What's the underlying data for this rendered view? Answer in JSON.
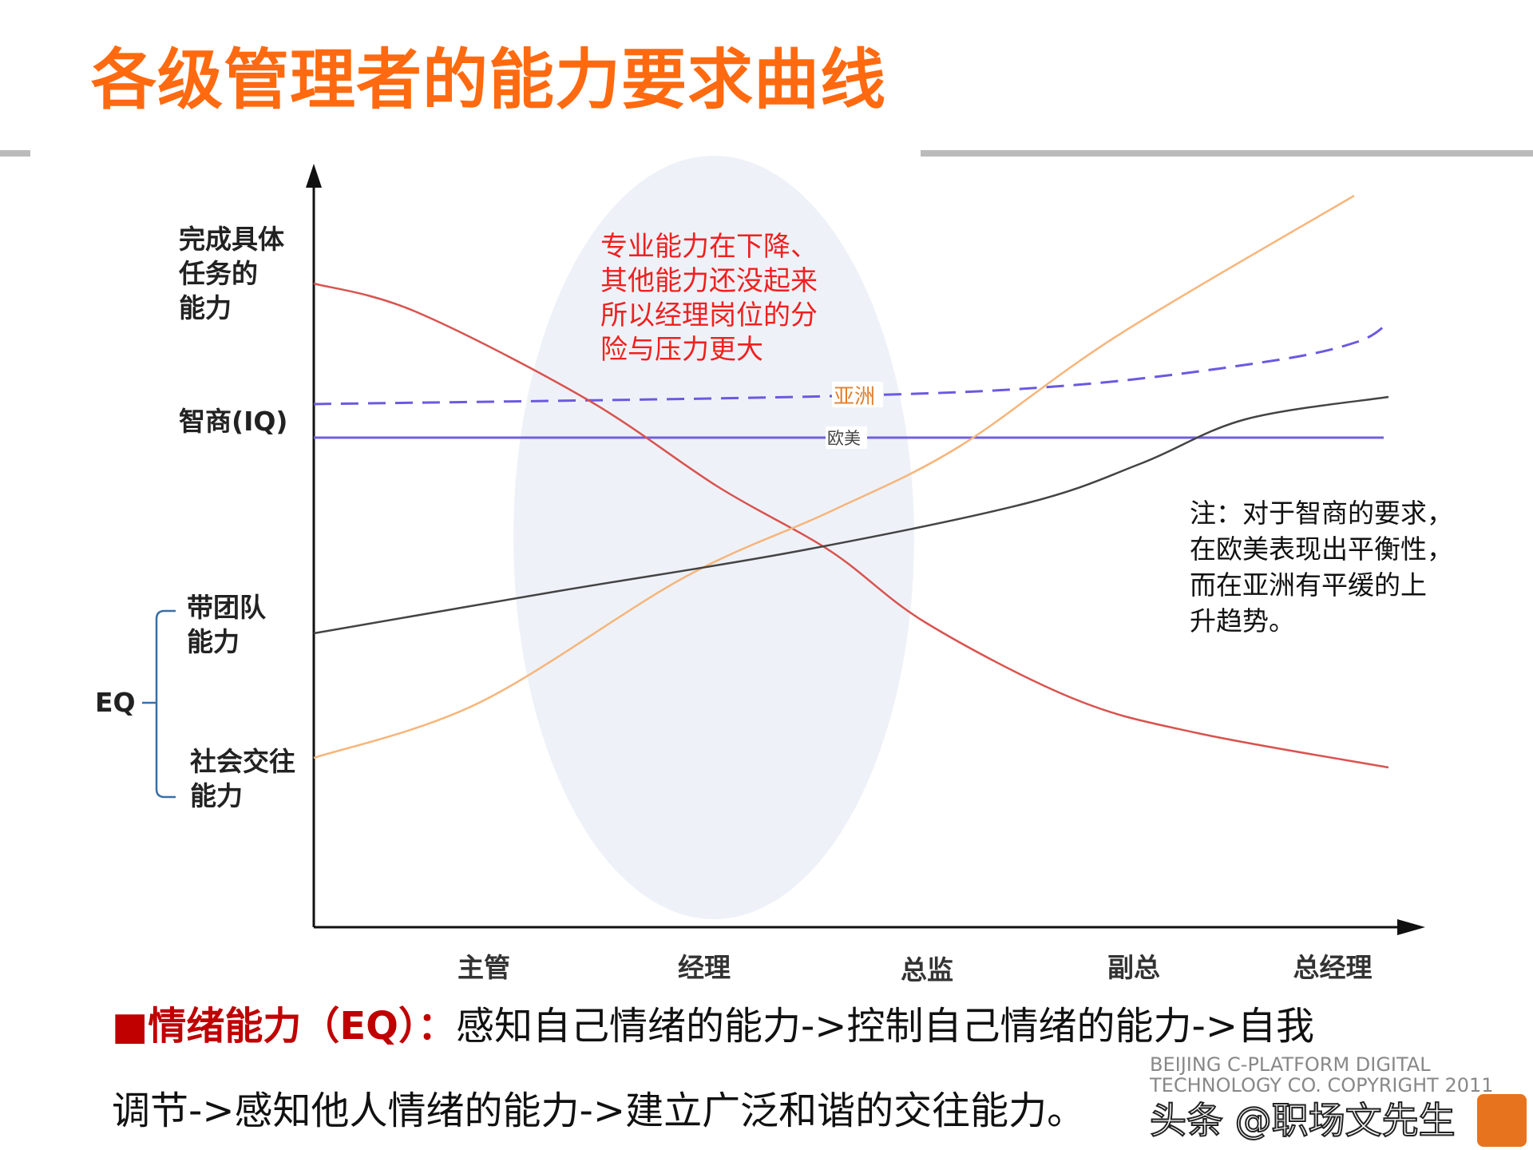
{
  "title": "各级管理者的能力要求曲线",
  "y_labels": {
    "task": [
      "完成具体",
      "任务的",
      "能力"
    ],
    "iq": "智商(IQ)",
    "team": [
      "带团队",
      "能力"
    ],
    "social": [
      "社会交往",
      "能力"
    ],
    "eq": "EQ"
  },
  "x_labels": [
    "主管",
    "经理",
    "总监",
    "副总",
    "总经理"
  ],
  "callout": [
    "专业能力在下降、",
    "其他能力还没起来",
    "所以经理岗位的分",
    "险与压力更大"
  ],
  "line_labels": {
    "asia": "亚洲",
    "west": "欧美"
  },
  "note": [
    "注：对于智商的要求，",
    "在欧美表现出平衡性，",
    "而在亚洲有平缓的上",
    "升趋势。"
  ],
  "footer": {
    "bullet": "■",
    "heading": "情绪能力（EQ）：",
    "line1": "感知自己情绪的能力->控制自己情绪的能力->自我",
    "line2": "调节->感知他人情绪的能力->建立广泛和谐的交往能力。"
  },
  "watermark": {
    "copyright": "BEIJING C-PLATFORM DIGITAL TECHNOLOGY CO. COPYRIGHT 2011",
    "source": "头条 @职场文先生"
  },
  "colors": {
    "title": "#ff6a10",
    "task_curve": "#d9534f",
    "social_curve": "#f7b57a",
    "team_curve": "#444444",
    "iq_asia": "#6a5ae0",
    "iq_west": "#7060e0",
    "callout": "#f02020",
    "ellipse": "#eef2f8"
  }
}
